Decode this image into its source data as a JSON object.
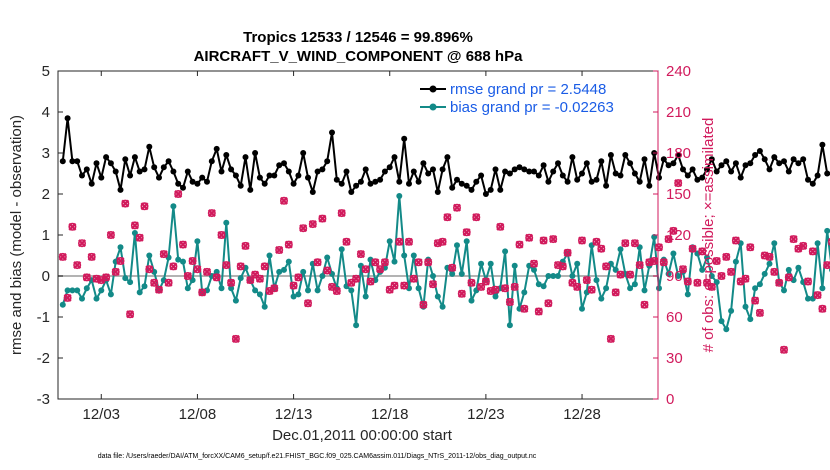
{
  "chart_data": {
    "type": "line",
    "title_line1": "Tropics 12533 / 12546 = 99.896%",
    "title_line2": "AIRCRAFT_V_WIND_COMPONENT @ 688 hPa",
    "xlabel": "Dec.01,2011 00:00:00 start",
    "ylabel": "rmse and bias (model - observation)",
    "y2label": "# of obs: o=possible; ×=assimilated",
    "ylim": [
      -3,
      5
    ],
    "y2lim": [
      0,
      240
    ],
    "xlim": [
      0.75,
      31.95
    ],
    "yticks": [
      "-3",
      "-2",
      "-1",
      "0",
      "1",
      "2",
      "3",
      "4",
      "5"
    ],
    "y2ticks": [
      "0",
      "30",
      "60",
      "90",
      "120",
      "150",
      "180",
      "210",
      "240"
    ],
    "xticks": [
      {
        "day": 3,
        "label": "12/03"
      },
      {
        "day": 8,
        "label": "12/08"
      },
      {
        "day": 13,
        "label": "12/13"
      },
      {
        "day": 18,
        "label": "12/18"
      },
      {
        "day": 23,
        "label": "12/23"
      },
      {
        "day": 28,
        "label": "12/28"
      }
    ],
    "step": 0.25,
    "x0": 1.0,
    "series": [
      {
        "name": "rmse",
        "legend": "rmse grand pr = 2.5448",
        "color": "#000000",
        "values": [
          2.8,
          3.85,
          2.8,
          2.8,
          2.45,
          2.6,
          2.25,
          2.75,
          2.4,
          2.9,
          2.75,
          2.55,
          2.1,
          2.85,
          2.45,
          2.9,
          2.55,
          2.6,
          3.15,
          2.65,
          2.4,
          2.65,
          2.8,
          2.55,
          2.25,
          2.15,
          2.55,
          2.3,
          2.25,
          2.4,
          2.3,
          2.8,
          3.1,
          2.55,
          2.95,
          2.6,
          2.45,
          2.2,
          2.9,
          2.1,
          3.0,
          2.4,
          2.25,
          2.45,
          2.45,
          2.7,
          2.75,
          2.55,
          2.25,
          2.45,
          3.0,
          2.4,
          2.05,
          2.55,
          2.6,
          2.8,
          3.5,
          2.35,
          2.25,
          2.55,
          2.05,
          2.2,
          2.3,
          2.6,
          2.25,
          2.3,
          2.35,
          2.55,
          2.65,
          2.9,
          2.3,
          3.35,
          2.25,
          2.55,
          2.3,
          2.75,
          2.5,
          2.6,
          2.05,
          2.6,
          2.9,
          2.15,
          2.35,
          2.25,
          2.2,
          2.1,
          2.3,
          2.45,
          2.0,
          2.1,
          2.6,
          2.1,
          2.55,
          2.5,
          2.6,
          2.65,
          2.6,
          2.55,
          2.55,
          2.45,
          2.7,
          2.3,
          2.55,
          2.75,
          2.45,
          2.3,
          2.9,
          2.35,
          2.5,
          2.75,
          2.3,
          2.35,
          2.8,
          2.2,
          2.95,
          2.5,
          2.45,
          2.95,
          2.75,
          2.5,
          2.3,
          2.85,
          2.2,
          3.0,
          2.4,
          2.85,
          2.7,
          2.75,
          2.95,
          2.6,
          2.45,
          2.6,
          2.35,
          2.4,
          2.6,
          2.85,
          2.55,
          2.7,
          2.8,
          2.55,
          2.75,
          2.4,
          2.7,
          2.75,
          2.95,
          3.05,
          2.85,
          2.6,
          2.9,
          2.75,
          2.8,
          2.55,
          2.85,
          2.75,
          2.85,
          2.35,
          2.25,
          2.45,
          3.2,
          2.5
        ]
      },
      {
        "name": "bias",
        "legend": "bias grand pr = -0.02263",
        "color": "#138a88",
        "values": [
          -0.7,
          -0.35,
          -0.35,
          -0.35,
          -0.55,
          -0.3,
          -0.1,
          -0.55,
          -0.35,
          -0.1,
          -0.45,
          0.35,
          0.7,
          -0.05,
          -0.15,
          1.05,
          -0.4,
          -0.25,
          0.5,
          0.1,
          -0.35,
          -0.1,
          0.45,
          1.7,
          0.4,
          0.35,
          -0.3,
          -0.1,
          0.85,
          -0.4,
          -0.35,
          0.0,
          0.1,
          -0.3,
          1.3,
          -0.3,
          -0.6,
          -0.05,
          0.2,
          -0.1,
          -0.35,
          -0.45,
          -0.75,
          0.5,
          -0.3,
          0.1,
          0.15,
          0.35,
          -0.5,
          -0.45,
          0.1,
          -0.35,
          0.3,
          -0.35,
          0.0,
          0.45,
          0.05,
          -0.3,
          0.65,
          -0.25,
          -0.35,
          -1.2,
          0.25,
          -0.5,
          0.4,
          -0.1,
          0.1,
          0.2,
          0.85,
          0.35,
          1.95,
          0.5,
          -0.3,
          0.5,
          -0.3,
          -0.75,
          0.4,
          0.0,
          -0.5,
          -0.75,
          0.2,
          0.05,
          0.75,
          0.05,
          0.85,
          -0.6,
          -0.35,
          0.3,
          -0.1,
          0.3,
          -0.5,
          -0.3,
          0.6,
          -1.2,
          0.25,
          -0.8,
          -0.4,
          0.25,
          0.15,
          -0.2,
          -0.25,
          0.0,
          0.0,
          0.0,
          0.35,
          0.55,
          0.0,
          0.3,
          -0.8,
          -0.4,
          0.75,
          -0.1,
          -0.55,
          -0.3,
          0.3,
          0.15,
          0.65,
          0.05,
          -0.3,
          -0.2,
          0.7,
          -0.35,
          0.25,
          0.95,
          -0.3,
          0.4,
          0.05,
          0.55,
          0.0,
          0.1,
          -0.45,
          0.7,
          0.55,
          0.15,
          0.45,
          0.0,
          -0.15,
          -1.1,
          -1.3,
          -0.85,
          0.35,
          0.8,
          -0.75,
          -1.05,
          -0.3,
          -0.2,
          0.05,
          0.3,
          0.8,
          -0.15,
          -0.35,
          0.15,
          -0.1,
          0.2,
          -0.15,
          -0.55,
          -0.55,
          0.8,
          -0.3,
          1.1,
          0.15,
          0.25
        ]
      },
      {
        "name": "possible",
        "color": "#d11a5c",
        "axis": "right",
        "values": [
          104,
          74,
          126,
          98,
          114,
          89,
          104,
          88,
          87,
          89,
          120,
          93,
          101,
          143,
          62,
          127,
          118,
          141,
          95,
          85,
          80,
          106,
          85,
          97,
          150,
          113,
          90,
          101,
          95,
          78,
          93,
          136,
          89,
          120,
          98,
          85,
          44,
          97,
          112,
          87,
          91,
          88,
          97,
          79,
          81,
          109,
          145,
          113,
          83,
          89,
          125,
          70,
          128,
          100,
          132,
          94,
          82,
          79,
          136,
          115,
          85,
          88,
          106,
          95,
          86,
          100,
          95,
          100,
          80,
          83,
          115,
          83,
          115,
          88,
          100,
          69,
          100,
          84,
          114,
          115,
          133,
          96,
          140,
          77,
          122,
          85,
          133,
          82,
          86,
          79,
          80,
          126,
          81,
          71,
          82,
          113,
          66,
          118,
          99,
          64,
          116,
          70,
          117,
          98,
          97,
          107,
          85,
          82,
          116,
          87,
          80,
          115,
          110,
          97,
          44,
          78,
          91,
          114,
          91,
          114,
          98,
          69,
          100,
          101,
          111,
          100,
          117,
          123,
          158,
          95,
          86,
          110,
          85,
          108,
          85,
          82,
          101,
          90,
          104,
          93,
          116,
          86,
          88,
          111,
          72,
          63,
          105,
          104,
          93,
          85,
          36,
          89,
          117,
          110,
          112,
          86,
          108,
          76,
          66,
          98,
          115,
          0
        ]
      },
      {
        "name": "assimilated",
        "color": "#d11a5c",
        "axis": "right",
        "values": [
          104,
          74,
          126,
          98,
          114,
          89,
          104,
          88,
          87,
          89,
          120,
          93,
          101,
          143,
          62,
          127,
          118,
          141,
          95,
          85,
          80,
          106,
          85,
          97,
          150,
          113,
          90,
          101,
          95,
          78,
          93,
          136,
          89,
          120,
          98,
          85,
          44,
          97,
          112,
          87,
          91,
          88,
          97,
          79,
          81,
          109,
          145,
          113,
          83,
          89,
          125,
          70,
          128,
          100,
          132,
          94,
          82,
          79,
          136,
          115,
          85,
          88,
          106,
          95,
          86,
          100,
          95,
          100,
          80,
          83,
          115,
          83,
          115,
          88,
          100,
          69,
          100,
          84,
          114,
          115,
          133,
          96,
          140,
          77,
          122,
          85,
          133,
          82,
          86,
          79,
          80,
          126,
          81,
          71,
          82,
          113,
          66,
          118,
          99,
          64,
          116,
          70,
          117,
          98,
          97,
          107,
          85,
          82,
          116,
          87,
          80,
          115,
          110,
          97,
          44,
          78,
          91,
          114,
          91,
          114,
          98,
          69,
          100,
          101,
          111,
          100,
          117,
          123,
          158,
          95,
          86,
          110,
          85,
          108,
          85,
          82,
          101,
          90,
          104,
          93,
          116,
          86,
          88,
          111,
          72,
          63,
          105,
          104,
          93,
          85,
          36,
          89,
          117,
          110,
          112,
          86,
          108,
          76,
          66,
          98,
          115,
          0
        ]
      }
    ],
    "zero_line": 0,
    "footer": "data file: /Users/raeder/DAI/ATM_forcXX/CAM6_setup/f.e21.FHIST_BGC.f09_025.CAM6assim.011/Diags_NTrS_2011-12/obs_diag_output.nc"
  }
}
